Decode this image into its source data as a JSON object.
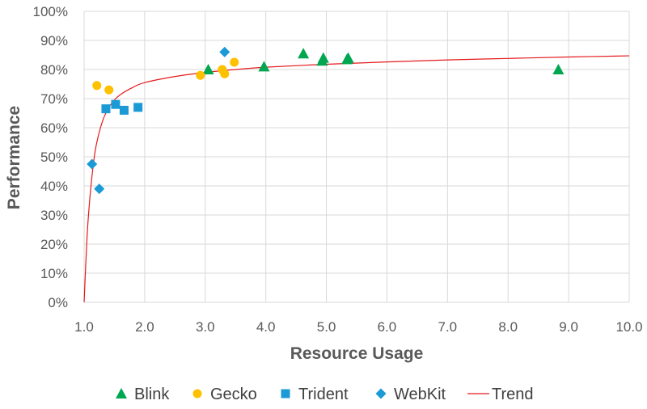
{
  "chart_data": {
    "type": "scatter",
    "title": "",
    "xlabel": "Resource Usage",
    "ylabel": "Performance",
    "xlim": [
      1.0,
      10.0
    ],
    "ylim": [
      0,
      1.0
    ],
    "x_ticks": [
      "1.0",
      "2.0",
      "3.0",
      "4.0",
      "5.0",
      "6.0",
      "7.0",
      "8.0",
      "9.0",
      "10.0"
    ],
    "y_ticks": [
      "0%",
      "10%",
      "20%",
      "30%",
      "40%",
      "50%",
      "60%",
      "70%",
      "80%",
      "90%",
      "100%"
    ],
    "grid": true,
    "legend_position": "bottom",
    "series": [
      {
        "name": "Blink",
        "marker": "triangle",
        "color": "#00a650",
        "x": [
          3.05,
          3.97,
          4.62,
          4.93,
          4.95,
          5.34,
          5.36,
          8.83
        ],
        "y": [
          0.8,
          0.81,
          0.855,
          0.83,
          0.84,
          0.835,
          0.84,
          0.8
        ]
      },
      {
        "name": "Gecko",
        "marker": "circle",
        "color": "#ffc000",
        "x": [
          1.21,
          1.41,
          2.92,
          3.28,
          3.32,
          3.48
        ],
        "y": [
          0.745,
          0.73,
          0.78,
          0.8,
          0.785,
          0.825
        ]
      },
      {
        "name": "Trident",
        "marker": "square",
        "color": "#1b9ad6",
        "x": [
          1.36,
          1.52,
          1.66,
          1.89
        ],
        "y": [
          0.665,
          0.68,
          0.66,
          0.67
        ]
      },
      {
        "name": "WebKit",
        "marker": "diamond",
        "color": "#1b9ad6",
        "x": [
          1.13,
          1.25,
          3.32
        ],
        "y": [
          0.475,
          0.39,
          0.86
        ]
      },
      {
        "name": "Trend",
        "marker": "line",
        "color": "#e41a1c",
        "x": [
          1.0,
          1.05,
          1.1,
          1.15,
          1.2,
          1.3,
          1.4,
          1.5,
          1.6,
          1.8,
          2.0,
          2.5,
          3.0,
          3.5,
          4.0,
          5.0,
          6.0,
          7.0,
          8.0,
          9.0,
          10.0
        ],
        "y": [
          0.0,
          0.23,
          0.37,
          0.47,
          0.54,
          0.62,
          0.667,
          0.695,
          0.714,
          0.738,
          0.755,
          0.776,
          0.79,
          0.8,
          0.808,
          0.818,
          0.826,
          0.833,
          0.838,
          0.843,
          0.847
        ]
      }
    ]
  }
}
